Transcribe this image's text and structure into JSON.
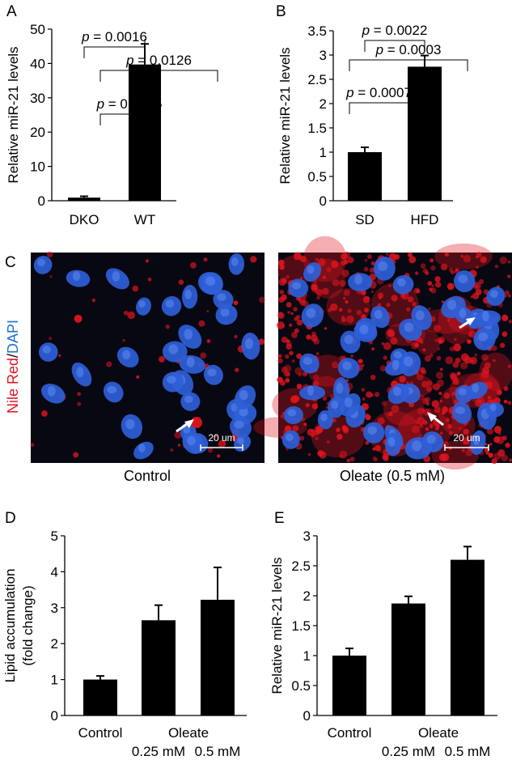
{
  "figure": {
    "panels": [
      "A",
      "B",
      "C",
      "D",
      "E"
    ]
  },
  "microscopy": {
    "stain_label_red": "Nile Red",
    "stain_label_sep": "/",
    "stain_label_blue": "DAPI",
    "images": [
      {
        "caption": "Control",
        "scale_bar": "20 um"
      },
      {
        "caption": "Oleate (0.5 mM)",
        "scale_bar": "20 um"
      }
    ]
  },
  "colors": {
    "bar": "#000000",
    "stain_red": "#e0141e",
    "stain_blue": "#1f6fd0",
    "micro_bg": "#070812",
    "nucleus": "#2f5fd8"
  },
  "chart_data": [
    {
      "panel": "A",
      "type": "bar",
      "categories": [
        "DKO",
        "WT"
      ],
      "category_sublabels": [
        "",
        ""
      ],
      "values": [
        0.9,
        39.7
      ],
      "errors": [
        0.4,
        6.0
      ],
      "ylabel": "Relative miR-21 levels",
      "ylim": [
        0,
        50
      ],
      "yticks": [
        "0",
        "10",
        "20",
        "30",
        "40",
        "50"
      ],
      "comparisons": [
        {
          "from": 0,
          "to": 1,
          "label": "= 0.0016"
        }
      ]
    },
    {
      "panel": "B",
      "type": "bar",
      "categories": [
        "SD",
        "HFD"
      ],
      "category_sublabels": [
        "",
        ""
      ],
      "values": [
        1.0,
        2.76
      ],
      "errors": [
        0.1,
        0.23
      ],
      "ylabel": "Relative miR-21 levels",
      "ylim": [
        0,
        3.5
      ],
      "yticks": [
        "0",
        "0.5",
        "1",
        "1.5",
        "2",
        "2.5",
        "3",
        "3.5"
      ],
      "comparisons": [
        {
          "from": 0,
          "to": 1,
          "label": "= 0.0022"
        }
      ]
    },
    {
      "panel": "D",
      "type": "bar",
      "categories": [
        "Control",
        "",
        ""
      ],
      "group_label": "Oleate",
      "category_sublabels": [
        "",
        "0.25 mM",
        "0.5 mM"
      ],
      "values": [
        1.0,
        2.65,
        3.22
      ],
      "errors": [
        0.1,
        0.42,
        0.9
      ],
      "ylabel_lines": [
        "Lipid accumulation",
        "(fold change)"
      ],
      "ylim": [
        0,
        5
      ],
      "yticks": [
        "0",
        "1",
        "2",
        "3",
        "4",
        "5"
      ],
      "comparisons": [
        {
          "from": 0,
          "to": 1,
          "label": "= 0.0025"
        },
        {
          "from": 0,
          "to": 2,
          "label": "= 0.0126"
        }
      ]
    },
    {
      "panel": "E",
      "type": "bar",
      "categories": [
        "Control",
        "",
        ""
      ],
      "group_label": "Oleate",
      "category_sublabels": [
        "",
        "0.25 mM",
        "0.5 mM"
      ],
      "values": [
        1.0,
        1.87,
        2.6
      ],
      "errors": [
        0.12,
        0.12,
        0.22
      ],
      "ylabel": "Relative miR-21 levels",
      "ylim": [
        0,
        3
      ],
      "yticks": [
        "0",
        "0.5",
        "1",
        "1.5",
        "2",
        "2.5",
        "3"
      ],
      "comparisons": [
        {
          "from": 0,
          "to": 1,
          "label": "= 0.0007"
        },
        {
          "from": 0,
          "to": 2,
          "label": "= 0.0003"
        }
      ]
    }
  ]
}
